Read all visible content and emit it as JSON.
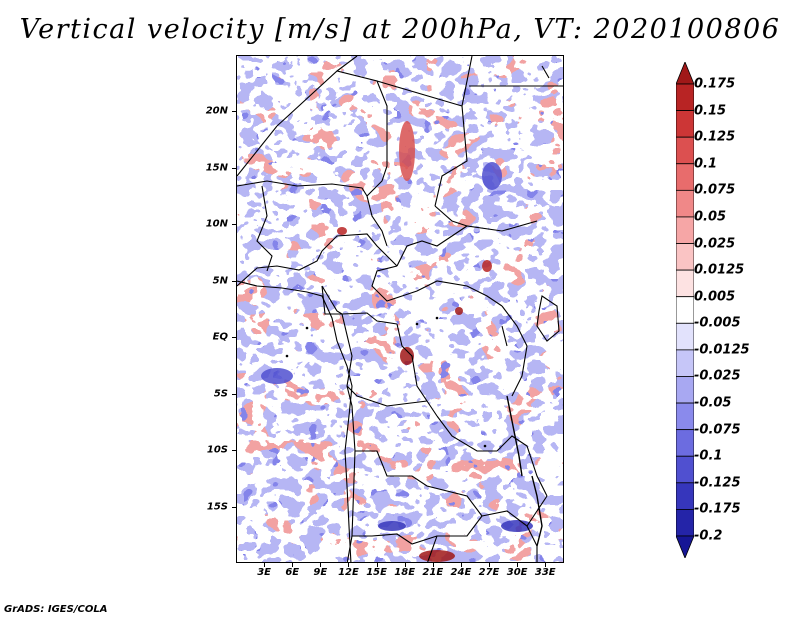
{
  "title": "Vertical velocity [m/s] at 200hPa, VT: 2020100806",
  "footer": "GrADS: IGES/COLA",
  "colors": {
    "background": "#ffffff",
    "border": "#000000"
  },
  "chart_data": {
    "type": "heatmap",
    "title": "Vertical velocity [m/s] at 200hPa, VT: 2020100806",
    "variable": "Vertical velocity",
    "units": "m/s",
    "level": "200hPa",
    "valid_time": "2020100806",
    "xlim": [
      0,
      35
    ],
    "ylim": [
      -20,
      25
    ],
    "x_ticks": [
      {
        "value": 3,
        "label": "3E"
      },
      {
        "value": 6,
        "label": "6E"
      },
      {
        "value": 9,
        "label": "9E"
      },
      {
        "value": 12,
        "label": "12E"
      },
      {
        "value": 15,
        "label": "15E"
      },
      {
        "value": 18,
        "label": "18E"
      },
      {
        "value": 21,
        "label": "21E"
      },
      {
        "value": 24,
        "label": "24E"
      },
      {
        "value": 27,
        "label": "27E"
      },
      {
        "value": 30,
        "label": "30E"
      },
      {
        "value": 33,
        "label": "33E"
      }
    ],
    "y_ticks": [
      {
        "value": 20,
        "label": "20N"
      },
      {
        "value": 15,
        "label": "15N"
      },
      {
        "value": 10,
        "label": "10N"
      },
      {
        "value": 5,
        "label": "5N"
      },
      {
        "value": 0,
        "label": "EQ"
      },
      {
        "value": -5,
        "label": "5S"
      },
      {
        "value": -10,
        "label": "10S"
      },
      {
        "value": -15,
        "label": "15S"
      }
    ],
    "colorbar": {
      "labels": [
        "0.175",
        "0.15",
        "0.125",
        "0.1",
        "0.075",
        "0.05",
        "0.025",
        "0.0125",
        "0.005",
        "-0.005",
        "-0.0125",
        "-0.025",
        "-0.05",
        "-0.075",
        "-0.1",
        "-0.125",
        "-0.175",
        "-0.2"
      ],
      "colors": [
        "#a01818",
        "#b82424",
        "#cc3636",
        "#dc5050",
        "#e86c6c",
        "#f08888",
        "#f6a6a6",
        "#fac4c4",
        "#fde2e2",
        "#ffffff",
        "#e2e2fc",
        "#c6c6f8",
        "#a8a8f2",
        "#8a8aec",
        "#6c6ce0",
        "#5050d0",
        "#3636bc",
        "#2424a8",
        "#161696"
      ]
    }
  }
}
